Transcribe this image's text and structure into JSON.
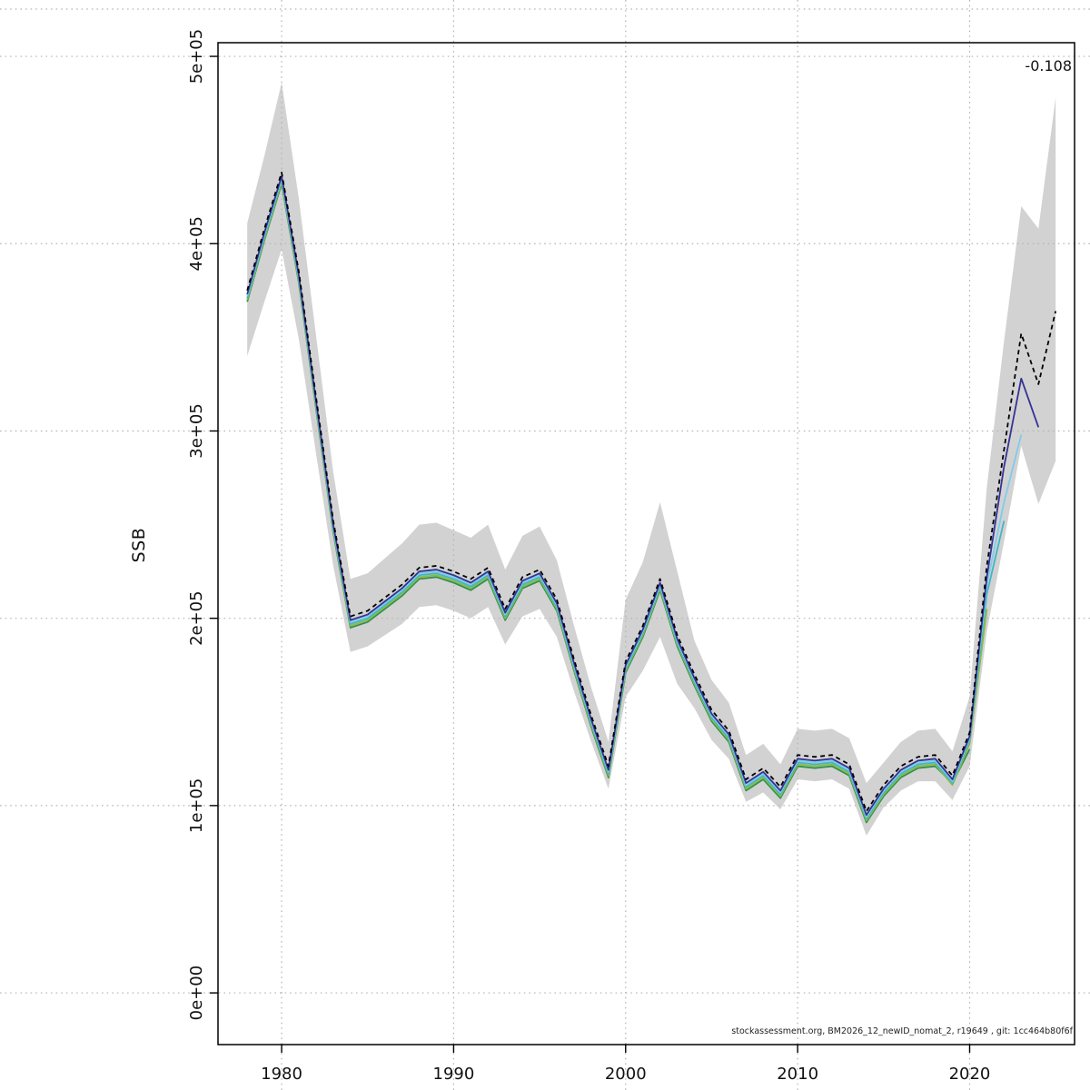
{
  "chart_data": {
    "type": "line",
    "title": "",
    "xlabel": "",
    "ylabel": "SSB",
    "annotation": "-0.108",
    "footer": "stockassessment.org, BM2026_12_newID_nomat_2, r19649 , git: 1cc464b80f6f",
    "unit_multiplier": 1000,
    "unit_note": "all SSB values, yticks and ylim are in thousands; plotted value = listed x 1000",
    "grid": true,
    "legend": "none",
    "xlim": [
      1976.3,
      2026.1
    ],
    "ylim": [
      -27.6,
      507.3
    ],
    "xticks": [
      1980,
      1990,
      2000,
      2010,
      2020
    ],
    "xtick_labels": [
      "1980",
      "1990",
      "2000",
      "2010",
      "2020"
    ],
    "yticks": [
      0,
      100,
      200,
      300,
      400,
      500
    ],
    "ytick_labels": [
      "0e+00",
      "1e+05",
      "2e+05",
      "3e+05",
      "4e+05",
      "5e+05"
    ],
    "years": [
      1978,
      1979,
      1980,
      1981,
      1982,
      1983,
      1984,
      1985,
      1986,
      1987,
      1988,
      1989,
      1990,
      1991,
      1992,
      1993,
      1994,
      1995,
      1996,
      1997,
      1998,
      1999,
      2000,
      2001,
      2002,
      2003,
      2004,
      2005,
      2006,
      2007,
      2008,
      2009,
      2010,
      2011,
      2012,
      2013,
      2014,
      2015,
      2016,
      2017,
      2018,
      2019,
      2020,
      2021,
      2022,
      2023,
      2024,
      2025
    ],
    "band": {
      "name": "confidence-band",
      "color": "#d2d2d2",
      "lower": [
        340,
        369,
        397,
        349,
        288,
        228,
        182,
        185,
        191,
        197,
        206,
        207,
        204,
        200,
        206,
        186,
        201,
        205,
        190,
        161,
        134,
        109,
        158,
        172,
        190,
        165,
        152,
        135,
        125,
        102,
        107,
        98,
        114,
        113,
        114,
        109,
        84,
        99,
        108,
        113,
        113,
        103,
        121,
        193,
        241,
        292,
        261,
        284
      ],
      "upper": [
        411,
        447,
        486,
        424,
        351,
        278,
        221,
        224,
        232,
        240,
        250,
        251,
        247,
        243,
        250,
        226,
        244,
        249,
        231,
        196,
        163,
        134,
        210,
        230,
        262,
        225,
        188,
        167,
        155,
        127,
        133,
        122,
        141,
        140,
        141,
        136,
        112,
        123,
        134,
        140,
        141,
        129,
        158,
        270,
        348,
        420,
        408,
        478
      ]
    },
    "series": [
      {
        "name": "final-2025",
        "style": "dashed",
        "color": "#000000",
        "values": [
          375,
          408,
          438,
          385,
          318,
          252,
          201,
          204,
          211,
          218,
          227,
          228,
          225,
          221,
          227,
          205,
          222,
          226,
          210,
          178,
          148,
          121,
          177,
          196,
          221,
          191,
          170,
          151,
          140,
          114,
          120,
          110,
          127,
          126,
          127,
          122,
          97,
          111,
          121,
          126,
          127,
          116,
          139,
          228,
          290,
          352,
          325,
          364
        ]
      },
      {
        "name": "retro-2024",
        "style": "solid",
        "color": "#343397",
        "values": [
          373,
          406,
          436,
          383,
          316,
          250,
          199,
          202,
          209,
          216,
          225,
          226,
          223,
          219,
          225,
          203,
          220,
          224,
          208,
          176,
          146,
          119,
          175,
          194,
          219,
          189,
          168,
          149,
          138,
          112,
          118,
          108,
          125,
          124,
          125,
          120,
          95,
          109,
          119,
          124,
          125,
          114,
          137,
          222,
          281,
          328,
          302
        ]
      },
      {
        "name": "retro-2023",
        "style": "solid",
        "color": "#7fccea",
        "values": [
          372,
          405,
          435,
          382,
          315,
          249,
          198,
          201,
          208,
          215,
          224,
          225,
          222,
          218,
          224,
          202,
          219,
          223,
          207,
          175,
          145,
          118,
          174,
          193,
          218,
          188,
          167,
          148,
          137,
          111,
          117,
          107,
          124,
          123,
          124,
          119,
          94,
          108,
          118,
          123,
          124,
          113,
          136,
          218,
          262,
          298
        ]
      },
      {
        "name": "retro-2022",
        "style": "solid",
        "color": "#41b6c4",
        "values": [
          371,
          404,
          434,
          381,
          314,
          248,
          197,
          200,
          207,
          214,
          223,
          224,
          221,
          217,
          223,
          201,
          218,
          222,
          206,
          174,
          144,
          117,
          173,
          192,
          217,
          187,
          166,
          147,
          136,
          110,
          116,
          106,
          123,
          122,
          123,
          118,
          93,
          107,
          117,
          122,
          123,
          112,
          135,
          213,
          252
        ]
      },
      {
        "name": "retro-2021",
        "style": "solid",
        "color": "#8cbb42",
        "values": [
          370,
          403,
          433,
          380,
          313,
          247,
          196,
          199,
          206,
          213,
          222,
          223,
          220,
          216,
          222,
          200,
          217,
          221,
          205,
          173,
          143,
          116,
          172,
          191,
          216,
          186,
          165,
          146,
          135,
          109,
          115,
          105,
          122,
          121,
          122,
          117,
          92,
          106,
          116,
          121,
          122,
          111,
          133,
          205
        ]
      },
      {
        "name": "retro-2020",
        "style": "solid",
        "color": "#2f8f4e",
        "values": [
          369,
          402,
          432,
          379,
          312,
          246,
          195,
          198,
          205,
          212,
          221,
          222,
          219,
          215,
          221,
          199,
          216,
          220,
          204,
          172,
          142,
          115,
          171,
          190,
          215,
          185,
          164,
          145,
          134,
          108,
          114,
          104,
          121,
          120,
          121,
          116,
          91,
          105,
          115,
          120,
          121,
          112,
          130
        ]
      }
    ]
  }
}
